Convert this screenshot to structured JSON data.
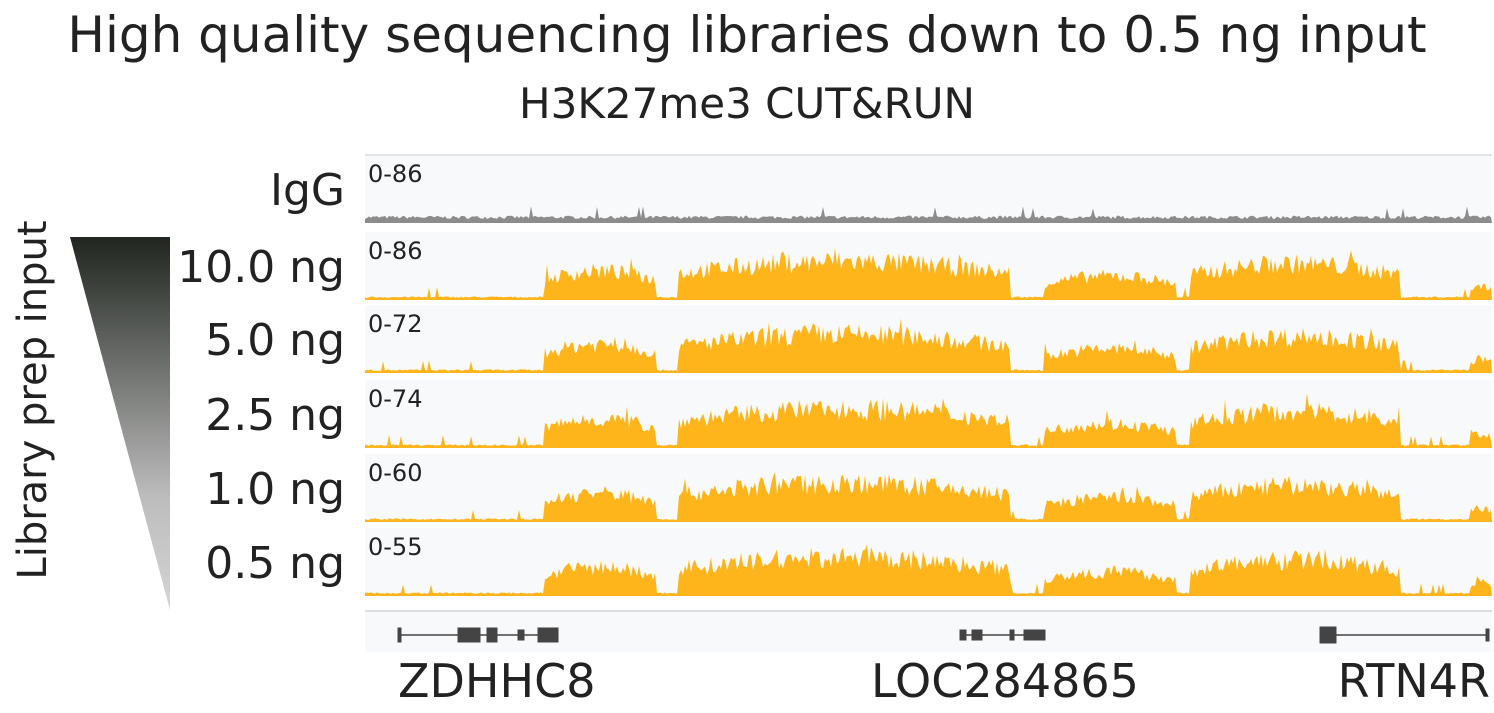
{
  "header": {
    "title": "High quality sequencing libraries down to 0.5 ng input",
    "subtitle": "H3K27me3 CUT&RUN"
  },
  "side_label": "Library prep input",
  "tracks": [
    {
      "label": "IgG",
      "range": "0-86"
    },
    {
      "label": "10.0 ng",
      "range": "0-86"
    },
    {
      "label": "5.0 ng",
      "range": "0-72"
    },
    {
      "label": "2.5 ng",
      "range": "0-74"
    },
    {
      "label": "1.0 ng",
      "range": "0-60"
    },
    {
      "label": "0.5 ng",
      "range": "0-55"
    }
  ],
  "genes": [
    "ZDHHC8",
    "LOC284865",
    "RTN4R"
  ]
}
